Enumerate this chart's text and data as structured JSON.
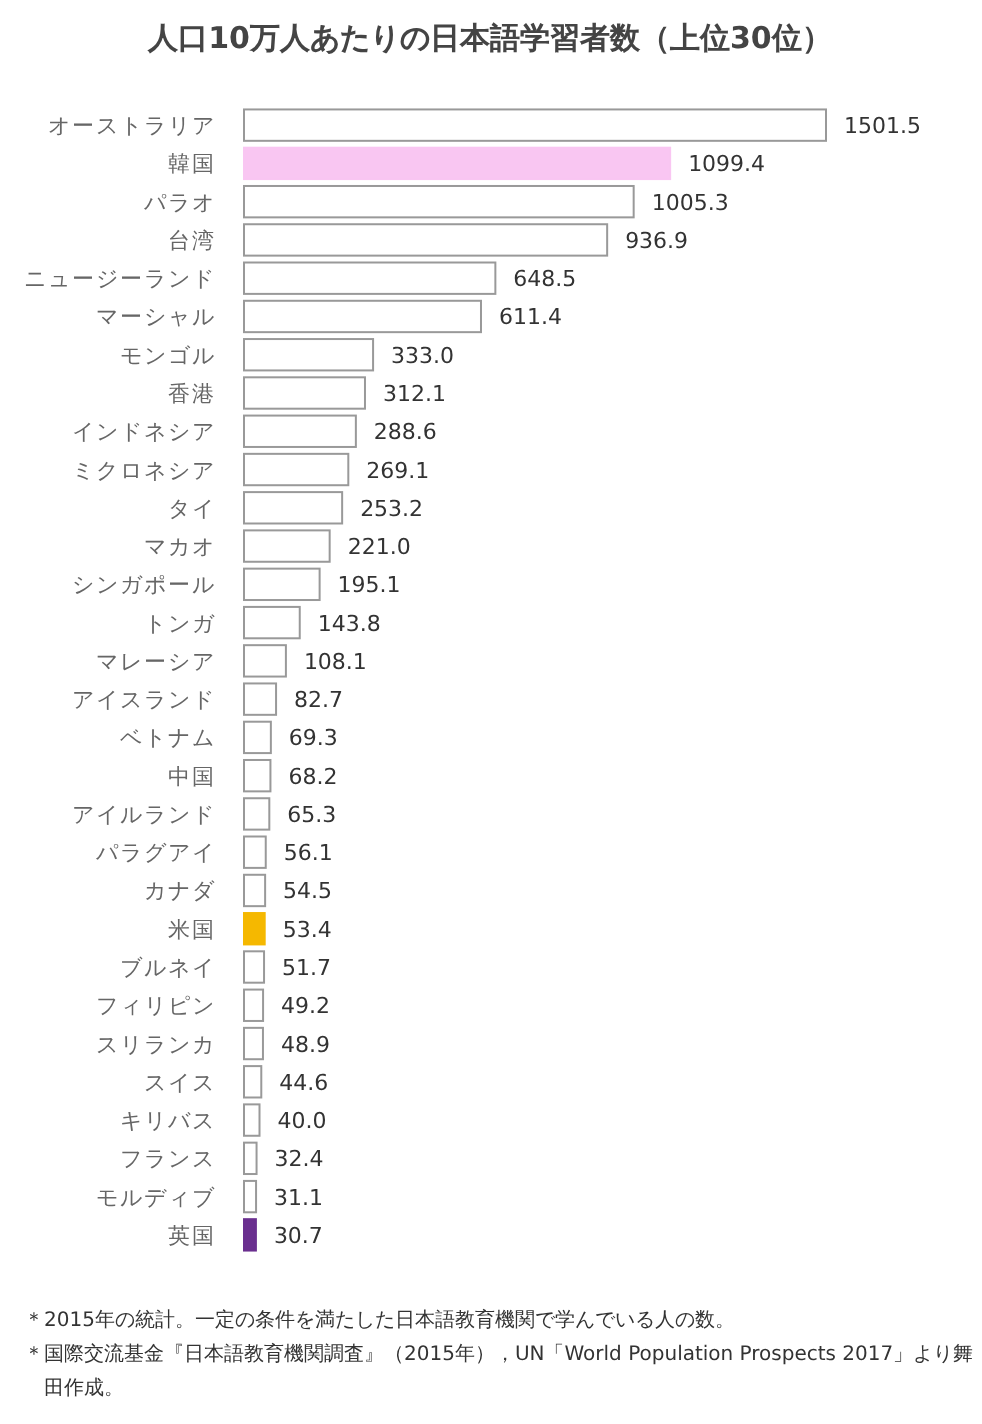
{
  "chart_data": {
    "type": "bar",
    "orientation": "horizontal",
    "title": "人口10万人あたりの日本語学習者数（上位30位）",
    "categories": [
      "オーストラリア",
      "韓国",
      "パラオ",
      "台湾",
      "ニュージーランド",
      "マーシャル",
      "モンゴル",
      "香港",
      "インドネシア",
      "ミクロネシア",
      "タイ",
      "マカオ",
      "シンガポール",
      "トンガ",
      "マレーシア",
      "アイスランド",
      "ベトナム",
      "中国",
      "アイルランド",
      "パラグアイ",
      "カナダ",
      "米国",
      "ブルネイ",
      "フィリピン",
      "スリランカ",
      "スイス",
      "キリバス",
      "フランス",
      "モルディブ",
      "英国"
    ],
    "values": [
      1501.5,
      1099.4,
      1005.3,
      936.9,
      648.5,
      611.4,
      333.0,
      312.1,
      288.6,
      269.1,
      253.2,
      221.0,
      195.1,
      143.8,
      108.1,
      82.7,
      69.3,
      68.2,
      65.3,
      56.1,
      54.5,
      53.4,
      51.7,
      49.2,
      48.9,
      44.6,
      40.0,
      32.4,
      31.1,
      30.7
    ],
    "value_labels": [
      "1501.5",
      "1099.4",
      "1005.3",
      "936.9",
      "648.5",
      "611.4",
      "333.0",
      "312.1",
      "288.6",
      "269.1",
      "253.2",
      "221.0",
      "195.1",
      "143.8",
      "108.1",
      "82.7",
      "69.3",
      "68.2",
      "65.3",
      "56.1",
      "54.5",
      "53.4",
      "51.7",
      "49.2",
      "48.9",
      "44.6",
      "40.0",
      "32.4",
      "31.1",
      "30.7"
    ],
    "colors": [
      "#ffffff",
      "#f9c6f2",
      "#ffffff",
      "#ffffff",
      "#ffffff",
      "#ffffff",
      "#ffffff",
      "#ffffff",
      "#ffffff",
      "#ffffff",
      "#ffffff",
      "#ffffff",
      "#ffffff",
      "#ffffff",
      "#ffffff",
      "#ffffff",
      "#ffffff",
      "#ffffff",
      "#ffffff",
      "#ffffff",
      "#ffffff",
      "#f5b800",
      "#ffffff",
      "#ffffff",
      "#ffffff",
      "#ffffff",
      "#ffffff",
      "#ffffff",
      "#ffffff",
      "#6a2f8f"
    ],
    "annotations": [
      "＊2015年の統計。一定の条件を満たした日本語教育機関で学んでいる人の数。",
      "＊国際交流基金『日本語教育機関調査』（2015年），UN「World Population Prospects 2017」より舞田作成。"
    ]
  }
}
